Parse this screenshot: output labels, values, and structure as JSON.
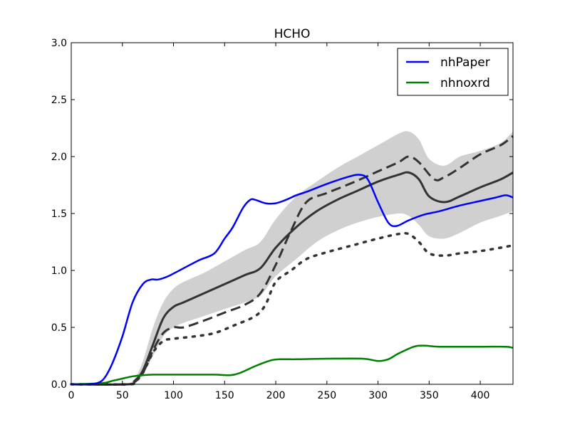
{
  "chart_data": {
    "type": "line",
    "title": "HCHO",
    "xlabel": "",
    "ylabel": "",
    "xlim": [
      0,
      432
    ],
    "ylim": [
      0,
      3.0
    ],
    "xticks": [
      0,
      50,
      100,
      150,
      200,
      250,
      300,
      350,
      400
    ],
    "yticks": [
      0.0,
      0.5,
      1.0,
      1.5,
      2.0,
      2.5,
      3.0
    ],
    "xtick_labels": [
      "0",
      "50",
      "100",
      "150",
      "200",
      "250",
      "300",
      "350",
      "400"
    ],
    "ytick_labels": [
      "0.0",
      "0.5",
      "1.0",
      "1.5",
      "2.0",
      "2.5",
      "3.0"
    ],
    "grid": false,
    "legend_position": "top-right",
    "series": [
      {
        "name": "nhPaper",
        "color": "#0000ff",
        "style": "solid",
        "x": [
          0,
          15,
          25,
          32,
          40,
          50,
          60,
          70,
          78,
          85,
          95,
          110,
          125,
          140,
          150,
          158,
          168,
          175,
          180,
          190,
          200,
          210,
          220,
          230,
          250,
          270,
          282,
          290,
          300,
          310,
          318,
          330,
          345,
          360,
          380,
          400,
          415,
          425,
          432
        ],
        "values": [
          0.0,
          0.0,
          0.01,
          0.05,
          0.18,
          0.42,
          0.72,
          0.88,
          0.92,
          0.92,
          0.95,
          1.02,
          1.09,
          1.15,
          1.28,
          1.38,
          1.55,
          1.62,
          1.62,
          1.59,
          1.59,
          1.62,
          1.66,
          1.69,
          1.76,
          1.82,
          1.84,
          1.8,
          1.6,
          1.42,
          1.39,
          1.44,
          1.49,
          1.52,
          1.57,
          1.61,
          1.64,
          1.66,
          1.64
        ]
      },
      {
        "name": "nhnoxrd",
        "color": "#008000",
        "style": "solid",
        "x": [
          0,
          30,
          40,
          50,
          60,
          70,
          80,
          100,
          120,
          140,
          155,
          165,
          180,
          195,
          205,
          220,
          250,
          285,
          300,
          310,
          320,
          335,
          345,
          360,
          400,
          425,
          432
        ],
        "values": [
          0.0,
          0.01,
          0.03,
          0.05,
          0.07,
          0.08,
          0.085,
          0.085,
          0.085,
          0.085,
          0.08,
          0.1,
          0.16,
          0.21,
          0.22,
          0.22,
          0.225,
          0.225,
          0.205,
          0.22,
          0.27,
          0.33,
          0.34,
          0.33,
          0.33,
          0.33,
          0.32
        ]
      },
      {
        "color": "#333333",
        "style": "solid-thick",
        "x": [
          0,
          55,
          62,
          70,
          80,
          90,
          100,
          110,
          130,
          150,
          170,
          185,
          200,
          220,
          240,
          260,
          280,
          300,
          320,
          330,
          340,
          350,
          365,
          380,
          400,
          420,
          432
        ],
        "values": [
          0.0,
          0.0,
          0.03,
          0.12,
          0.35,
          0.58,
          0.68,
          0.72,
          0.8,
          0.88,
          0.96,
          1.02,
          1.2,
          1.38,
          1.52,
          1.62,
          1.7,
          1.78,
          1.84,
          1.86,
          1.8,
          1.65,
          1.6,
          1.65,
          1.73,
          1.8,
          1.86
        ]
      },
      {
        "color": "#333333",
        "style": "dashed",
        "x": [
          0,
          55,
          62,
          70,
          80,
          90,
          100,
          110,
          130,
          150,
          170,
          185,
          200,
          215,
          230,
          250,
          275,
          300,
          320,
          330,
          340,
          355,
          365,
          380,
          400,
          420,
          432
        ],
        "values": [
          0.0,
          0.0,
          0.02,
          0.1,
          0.3,
          0.45,
          0.5,
          0.5,
          0.56,
          0.63,
          0.7,
          0.8,
          1.05,
          1.35,
          1.6,
          1.68,
          1.77,
          1.87,
          1.95,
          2.0,
          1.95,
          1.8,
          1.82,
          1.9,
          2.02,
          2.1,
          2.18
        ]
      },
      {
        "color": "#333333",
        "style": "dotted",
        "x": [
          0,
          55,
          62,
          70,
          80,
          90,
          100,
          120,
          140,
          160,
          180,
          190,
          200,
          215,
          230,
          250,
          275,
          300,
          320,
          330,
          340,
          350,
          365,
          380,
          400,
          420,
          432
        ],
        "values": [
          0.0,
          0.0,
          0.02,
          0.1,
          0.28,
          0.38,
          0.4,
          0.42,
          0.45,
          0.52,
          0.6,
          0.7,
          0.9,
          1.0,
          1.1,
          1.16,
          1.22,
          1.28,
          1.32,
          1.32,
          1.25,
          1.15,
          1.13,
          1.15,
          1.17,
          1.2,
          1.22
        ]
      }
    ],
    "band": {
      "color": "#d0d0d0",
      "x": [
        55,
        62,
        70,
        80,
        90,
        100,
        110,
        130,
        150,
        170,
        185,
        200,
        220,
        240,
        260,
        280,
        300,
        320,
        330,
        340,
        350,
        365,
        380,
        400,
        420,
        432
      ],
      "lower": [
        0.0,
        0.02,
        0.08,
        0.25,
        0.42,
        0.5,
        0.54,
        0.6,
        0.66,
        0.72,
        0.78,
        0.95,
        1.1,
        1.25,
        1.35,
        1.42,
        1.47,
        1.5,
        1.48,
        1.4,
        1.3,
        1.28,
        1.33,
        1.42,
        1.48,
        1.52
      ],
      "upper": [
        0.0,
        0.05,
        0.2,
        0.5,
        0.72,
        0.84,
        0.9,
        0.98,
        1.08,
        1.18,
        1.25,
        1.45,
        1.65,
        1.78,
        1.9,
        2.0,
        2.1,
        2.2,
        2.22,
        2.15,
        1.98,
        1.92,
        2.0,
        2.05,
        2.12,
        2.22
      ]
    }
  }
}
